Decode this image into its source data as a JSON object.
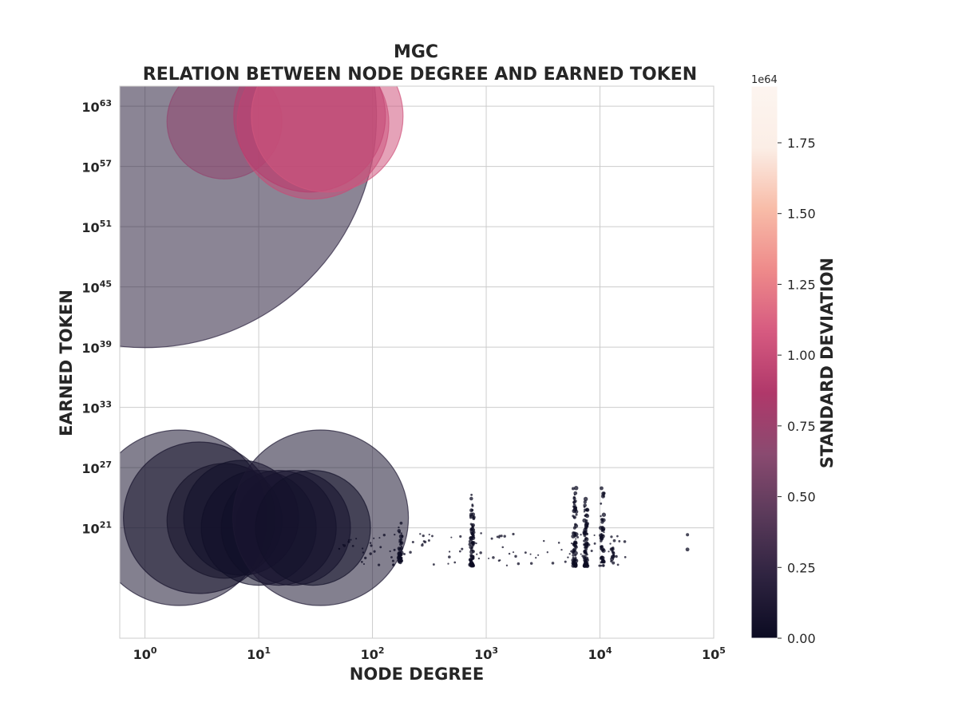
{
  "chart_data": {
    "type": "scatter",
    "title": "MGC",
    "subtitle": "RELATION BETWEEN NODE DEGREE AND EARNED TOKEN",
    "xlabel": "NODE DEGREE",
    "ylabel": "EARNED TOKEN",
    "xscale": "log",
    "yscale": "log",
    "xlim": [
      0.6,
      100000
    ],
    "ylim": [
      10000000000.0,
      1e+65
    ],
    "x_ticks": [
      {
        "base": "10",
        "exp": "0",
        "value": 1
      },
      {
        "base": "10",
        "exp": "1",
        "value": 10
      },
      {
        "base": "10",
        "exp": "2",
        "value": 100
      },
      {
        "base": "10",
        "exp": "3",
        "value": 1000
      },
      {
        "base": "10",
        "exp": "4",
        "value": 10000
      },
      {
        "base": "10",
        "exp": "5",
        "value": 100000
      }
    ],
    "y_ticks": [
      {
        "base": "10",
        "exp": "21",
        "value": 1e+21
      },
      {
        "base": "10",
        "exp": "27",
        "value": 1e+27
      },
      {
        "base": "10",
        "exp": "33",
        "value": 1e+33
      },
      {
        "base": "10",
        "exp": "39",
        "value": 1e+39
      },
      {
        "base": "10",
        "exp": "45",
        "value": 1e+45
      },
      {
        "base": "10",
        "exp": "51",
        "value": 1e+51
      },
      {
        "base": "10",
        "exp": "57",
        "value": 1e+57
      },
      {
        "base": "10",
        "exp": "63",
        "value": 1e+63
      }
    ],
    "grid": true,
    "marker_size_encodes": "standard deviation",
    "colorbar": {
      "label": "STANDARD DEVIATION",
      "multiplier": "1e64",
      "range": [
        0,
        1.95
      ],
      "ticks": [
        "0.00",
        "0.25",
        "0.50",
        "0.75",
        "1.00",
        "1.25",
        "1.50",
        "1.75"
      ],
      "tick_values": [
        0,
        0.25,
        0.5,
        0.75,
        1.0,
        1.25,
        1.5,
        1.75
      ],
      "colors": [
        "#0b0b22",
        "#2e2340",
        "#5a3a5a",
        "#8a4a70",
        "#b0386a",
        "#d65a80",
        "#ee8a8a",
        "#f8bca8",
        "#fbeee6",
        "#fdf5f0"
      ]
    },
    "big_points": [
      {
        "x": 1,
        "y": 1e+62,
        "std": 0.2,
        "radius_hint": "huge"
      },
      {
        "x": 5,
        "y": 3e+61,
        "std": 0.7,
        "radius_hint": "medium"
      },
      {
        "x": 30,
        "y": 2e+61,
        "std": 1.0,
        "radius_hint": "large"
      },
      {
        "x": 28,
        "y": 1e+62,
        "std": 0.9,
        "radius_hint": "large"
      },
      {
        "x": 40,
        "y": 1e+62,
        "std": 1.05,
        "radius_hint": "large"
      },
      {
        "x": 2,
        "y": 1e+22,
        "std": 0.12,
        "radius_hint": "xlarge"
      },
      {
        "x": 3,
        "y": 1e+22,
        "std": 0.08,
        "radius_hint": "large"
      },
      {
        "x": 5,
        "y": 5e+21,
        "std": 0.06,
        "radius_hint": "medium"
      },
      {
        "x": 7,
        "y": 1e+22,
        "std": 0.05,
        "radius_hint": "medium"
      },
      {
        "x": 10,
        "y": 1e+21,
        "std": 0.04,
        "radius_hint": "medium"
      },
      {
        "x": 15,
        "y": 1e+21,
        "std": 0.04,
        "radius_hint": "medium"
      },
      {
        "x": 20,
        "y": 1e+21,
        "std": 0.04,
        "radius_hint": "medium"
      },
      {
        "x": 35,
        "y": 1e+22,
        "std": 0.12,
        "radius_hint": "xlarge"
      },
      {
        "x": 30,
        "y": 1e+21,
        "std": 0.05,
        "radius_hint": "medium"
      }
    ],
    "clusters": [
      {
        "x_center": 175,
        "y_log_min": 17.5,
        "y_log_max": 21.5,
        "count": 40
      },
      {
        "x_center": 750,
        "y_log_min": 17.2,
        "y_log_max": 24.5,
        "count": 70
      },
      {
        "x_center": 6000,
        "y_log_min": 17.2,
        "y_log_max": 25.5,
        "count": 80
      },
      {
        "x_center": 7500,
        "y_log_min": 17.2,
        "y_log_max": 24.0,
        "count": 80
      },
      {
        "x_center": 10500,
        "y_log_min": 17.2,
        "y_log_max": 25.0,
        "count": 50
      },
      {
        "x_center": 13000,
        "y_log_min": 17.5,
        "y_log_max": 20.5,
        "count": 12
      },
      {
        "x_center": 60000,
        "y_log_min": 18.5,
        "y_log_max": 20.5,
        "count": 2
      }
    ],
    "scatter_spread": {
      "x_min": 50,
      "x_max": 20000,
      "y_log_min": 17.2,
      "y_log_max": 20.5,
      "count": 120
    }
  }
}
